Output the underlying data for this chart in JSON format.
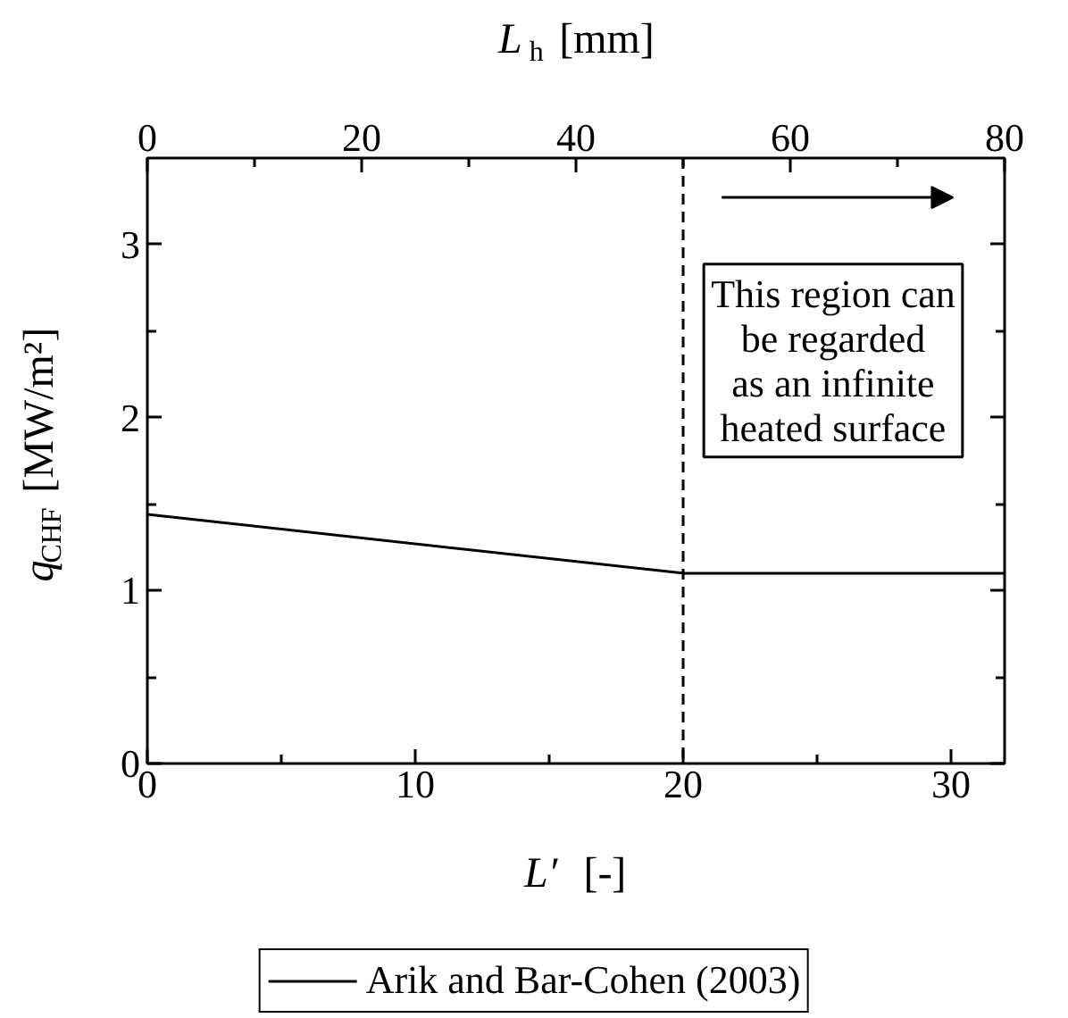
{
  "chart_data": {
    "type": "line",
    "xlabel": "L′ [-]",
    "ylabel": "q$_{CHF}$  [MW/m²]",
    "x2label": "L$_{h}$ [mm]",
    "xlim": [
      0,
      32
    ],
    "ylim": [
      0,
      3.5
    ],
    "x2lim": [
      0,
      80
    ],
    "xticks": [
      0,
      {
        "value": 5,
        "label": null
      },
      10,
      {
        "value": 15,
        "label": null
      },
      20,
      {
        "value": 25,
        "label": null
      },
      30
    ],
    "yticks": [
      0,
      {
        "value": 0.5,
        "label": null
      },
      1,
      {
        "value": 1.5,
        "label": null
      },
      2,
      {
        "value": 2.5,
        "label": null
      },
      3
    ],
    "x2ticks": [
      0,
      {
        "value": 10,
        "label": null
      },
      20,
      {
        "value": 30,
        "label": null
      },
      40,
      {
        "value": 50,
        "label": null
      },
      60,
      {
        "value": 70,
        "label": null
      },
      80
    ],
    "x": [
      0,
      20,
      32
    ],
    "series": [
      {
        "name": "Arik and Bar-Cohen (2003)",
        "color": "#000000",
        "values": [
          1.44,
          1.1,
          1.1
        ]
      }
    ],
    "ref_lines": [
      {
        "axis": "x",
        "value": 20,
        "color": "#000000",
        "line_style": "dashed"
      }
    ],
    "annotations": [
      "This region can\nbe regarded\nas an infinite\nheated surface"
    ],
    "legend": "bottom",
    "grid": false
  }
}
